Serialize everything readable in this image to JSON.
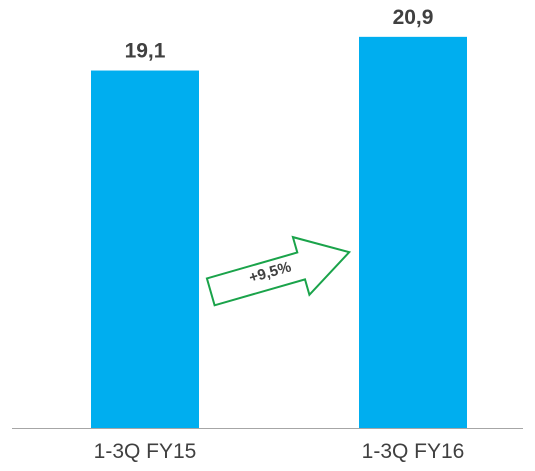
{
  "chart_data": {
    "type": "bar",
    "categories": [
      "1-3Q FY15",
      "1-3Q FY16"
    ],
    "values": [
      19.1,
      20.9
    ],
    "value_labels": [
      "19,1",
      "20,9"
    ],
    "ylim": [
      0,
      21.8
    ],
    "grid": false,
    "title": "",
    "xlabel": "",
    "ylabel": "",
    "annotations": [
      {
        "type": "growth-arrow",
        "text": "+9,5%",
        "from": "1-3Q FY15",
        "to": "1-3Q FY16"
      }
    ]
  },
  "colors": {
    "bar": "#00aeef",
    "arrow_stroke": "#1aa34a",
    "text": "#404040",
    "axis": "#a6a6a6"
  }
}
